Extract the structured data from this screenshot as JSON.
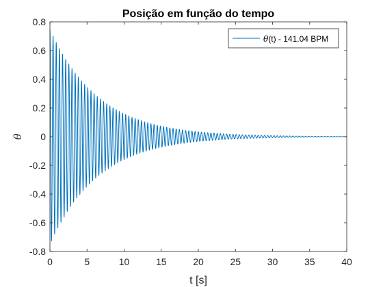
{
  "chart_data": {
    "type": "line",
    "title": "Posição em função do tempo",
    "xlabel": "t [s]",
    "ylabel": "θ",
    "xlim": [
      0,
      40
    ],
    "ylim": [
      -0.8,
      0.8
    ],
    "xticks": [
      0,
      5,
      10,
      15,
      20,
      25,
      30,
      35,
      40
    ],
    "yticks": [
      -0.8,
      -0.6,
      -0.4,
      -0.2,
      0,
      0.2,
      0.4,
      0.6,
      0.8
    ],
    "grid": false,
    "legend": {
      "placement": "top-right",
      "symbol": "θ",
      "text": "(t) - 141.04 BPM"
    },
    "series": [
      {
        "name": "θ(t) - 141.04 BPM",
        "color": "#0072BD",
        "model": "damped-cosine",
        "amplitude": 0.75,
        "frequency_bpm": 141.04,
        "decay_rate": 0.155,
        "peaks": [
          {
            "t": 0.0,
            "theta": 0.75
          },
          {
            "t": 0.43,
            "theta": -0.73
          },
          {
            "t": 0.85,
            "theta": 0.68
          },
          {
            "t": 1.28,
            "theta": -0.63
          },
          {
            "t": 1.7,
            "theta": 0.58
          },
          {
            "t": 5.1,
            "theta": 0.33
          },
          {
            "t": 10.2,
            "theta": 0.15
          },
          {
            "t": 15.3,
            "theta": 0.07
          },
          {
            "t": 20.0,
            "theta": 0.03
          },
          {
            "t": 25.0,
            "theta": 0.01
          },
          {
            "t": 30.0,
            "theta": 0.005
          },
          {
            "t": 40.0,
            "theta": 0.0
          }
        ]
      }
    ]
  }
}
